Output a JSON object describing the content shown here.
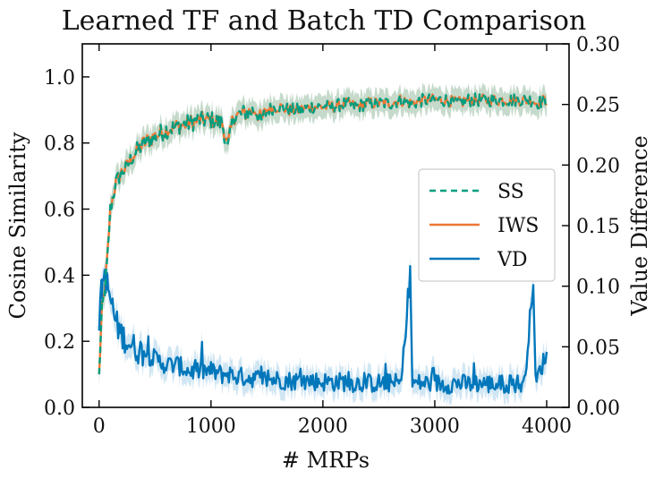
{
  "chart_data": {
    "type": "line",
    "title": "Learned TF and Batch TD Comparison",
    "xlabel": "# MRPs",
    "ylabel_left": "Cosine Similarity",
    "ylabel_right": "Value Difference",
    "xlim": [
      -150,
      4200
    ],
    "ylim_left": [
      0.0,
      1.1
    ],
    "ylim_right": [
      0.0,
      0.3
    ],
    "x_ticks": [
      "0",
      "1000",
      "2000",
      "3000",
      "4000"
    ],
    "y_left_ticks": [
      "0.0",
      "0.2",
      "0.4",
      "0.6",
      "0.8",
      "1.0"
    ],
    "y_right_ticks": [
      "0.00",
      "0.05",
      "0.10",
      "0.15",
      "0.20",
      "0.25",
      "0.30"
    ],
    "legend": {
      "placement": "center-right",
      "entries": [
        "SS",
        "IWS",
        "VD"
      ]
    },
    "x": [
      0,
      25,
      50,
      75,
      100,
      150,
      200,
      250,
      300,
      400,
      500,
      600,
      700,
      800,
      900,
      1000,
      1100,
      1150,
      1200,
      1300,
      1400,
      1450,
      1500,
      1600,
      1700,
      1800,
      1900,
      2000,
      2100,
      2200,
      2300,
      2400,
      2500,
      2600,
      2700,
      2780,
      2800,
      2900,
      3000,
      3100,
      3200,
      3300,
      3400,
      3500,
      3600,
      3700,
      3800,
      3880,
      3900,
      4000
    ],
    "series": [
      {
        "name": "SS",
        "axis": "left",
        "style": "dashed",
        "color": "#009e80",
        "values": [
          0.1,
          0.3,
          0.35,
          0.45,
          0.6,
          0.68,
          0.71,
          0.73,
          0.76,
          0.8,
          0.82,
          0.84,
          0.85,
          0.86,
          0.87,
          0.87,
          0.86,
          0.78,
          0.88,
          0.89,
          0.9,
          0.86,
          0.9,
          0.91,
          0.9,
          0.9,
          0.91,
          0.91,
          0.91,
          0.92,
          0.91,
          0.92,
          0.92,
          0.92,
          0.93,
          0.92,
          0.92,
          0.93,
          0.93,
          0.93,
          0.92,
          0.93,
          0.93,
          0.93,
          0.93,
          0.93,
          0.93,
          0.93,
          0.92,
          0.93
        ]
      },
      {
        "name": "IWS",
        "axis": "left",
        "style": "solid",
        "color": "#ee7733",
        "values": [
          0.1,
          0.3,
          0.36,
          0.46,
          0.6,
          0.68,
          0.71,
          0.73,
          0.76,
          0.8,
          0.82,
          0.84,
          0.85,
          0.86,
          0.87,
          0.87,
          0.86,
          0.79,
          0.88,
          0.89,
          0.9,
          0.87,
          0.9,
          0.91,
          0.9,
          0.9,
          0.91,
          0.91,
          0.91,
          0.92,
          0.91,
          0.92,
          0.92,
          0.92,
          0.93,
          0.92,
          0.92,
          0.93,
          0.93,
          0.93,
          0.92,
          0.93,
          0.93,
          0.93,
          0.93,
          0.93,
          0.93,
          0.93,
          0.92,
          0.93
        ]
      },
      {
        "name": "VD",
        "axis": "right",
        "style": "solid",
        "color": "#0077bb",
        "values": [
          0.07,
          0.1,
          0.11,
          0.1,
          0.09,
          0.07,
          0.06,
          0.055,
          0.05,
          0.045,
          0.04,
          0.035,
          0.035,
          0.03,
          0.03,
          0.03,
          0.027,
          0.028,
          0.026,
          0.025,
          0.024,
          0.024,
          0.023,
          0.023,
          0.022,
          0.022,
          0.022,
          0.021,
          0.021,
          0.021,
          0.02,
          0.02,
          0.02,
          0.02,
          0.02,
          0.11,
          0.02,
          0.02,
          0.02,
          0.019,
          0.02,
          0.019,
          0.02,
          0.019,
          0.019,
          0.02,
          0.019,
          0.105,
          0.02,
          0.045
        ]
      }
    ]
  }
}
